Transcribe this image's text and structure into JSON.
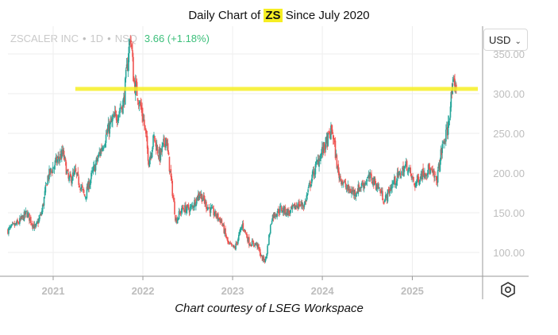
{
  "title": {
    "prefix": "Daily Chart of ",
    "ticker": "ZS",
    "suffix": " Since July 2020"
  },
  "legend": {
    "name": "ZSCALER INC",
    "interval": "1D",
    "exchange": "NSQ",
    "change": "3.66 (+1.18%)"
  },
  "currency": {
    "value": "USD"
  },
  "caption": "Chart courtesy of LSEG Workspace",
  "colors": {
    "up": "#26a69a",
    "down": "#ef5350",
    "resistance": "#f6ee23",
    "change": "#3bbf7a"
  },
  "icons": {
    "currency_dropdown": "chevron-down-icon",
    "settings": "hexagon-settings-icon"
  },
  "chart_data": {
    "type": "candlestick",
    "x_ticks": [
      "2021",
      "2022",
      "2023",
      "2024",
      "2025"
    ],
    "y_ticks": [
      "350.00",
      "300.00",
      "250.00",
      "200.00",
      "150.00",
      "100.00"
    ],
    "ylim": [
      70,
      385
    ],
    "xlim": [
      "2020-07-01",
      "2025-10-01"
    ],
    "grid": true,
    "resistance_level": 306,
    "resistance_start": "2021-04-01",
    "anchors": [
      [
        "2020-07-01",
        128
      ],
      [
        "2020-08-15",
        138
      ],
      [
        "2020-09-15",
        150
      ],
      [
        "2020-10-20",
        130
      ],
      [
        "2020-11-15",
        150
      ],
      [
        "2020-12-10",
        195
      ],
      [
        "2021-01-15",
        215
      ],
      [
        "2021-02-10",
        225
      ],
      [
        "2021-03-05",
        190
      ],
      [
        "2021-04-01",
        200
      ],
      [
        "2021-05-10",
        170
      ],
      [
        "2021-06-10",
        200
      ],
      [
        "2021-07-15",
        230
      ],
      [
        "2021-08-20",
        260
      ],
      [
        "2021-09-20",
        275
      ],
      [
        "2021-10-15",
        290
      ],
      [
        "2021-11-01",
        345
      ],
      [
        "2021-11-12",
        375
      ],
      [
        "2021-11-25",
        315
      ],
      [
        "2021-12-10",
        300
      ],
      [
        "2022-01-05",
        265
      ],
      [
        "2022-01-25",
        215
      ],
      [
        "2022-02-15",
        245
      ],
      [
        "2022-03-10",
        220
      ],
      [
        "2022-04-05",
        245
      ],
      [
        "2022-05-15",
        140
      ],
      [
        "2022-06-10",
        155
      ],
      [
        "2022-07-15",
        155
      ],
      [
        "2022-08-20",
        175
      ],
      [
        "2022-09-15",
        160
      ],
      [
        "2022-10-15",
        150
      ],
      [
        "2022-11-15",
        140
      ],
      [
        "2022-12-15",
        110
      ],
      [
        "2023-01-10",
        105
      ],
      [
        "2023-02-10",
        135
      ],
      [
        "2023-03-10",
        112
      ],
      [
        "2023-04-10",
        110
      ],
      [
        "2023-05-01",
        92
      ],
      [
        "2023-05-15",
        90
      ],
      [
        "2023-06-10",
        145
      ],
      [
        "2023-07-15",
        155
      ],
      [
        "2023-08-20",
        150
      ],
      [
        "2023-09-20",
        160
      ],
      [
        "2023-10-20",
        160
      ],
      [
        "2023-11-20",
        195
      ],
      [
        "2023-12-20",
        220
      ],
      [
        "2024-01-20",
        240
      ],
      [
        "2024-02-10",
        255
      ],
      [
        "2024-03-05",
        200
      ],
      [
        "2024-04-10",
        180
      ],
      [
        "2024-05-10",
        175
      ],
      [
        "2024-06-10",
        185
      ],
      [
        "2024-07-15",
        195
      ],
      [
        "2024-08-20",
        180
      ],
      [
        "2024-09-10",
        165
      ],
      [
        "2024-10-10",
        185
      ],
      [
        "2024-11-15",
        200
      ],
      [
        "2024-12-10",
        210
      ],
      [
        "2025-01-10",
        185
      ],
      [
        "2025-02-10",
        200
      ],
      [
        "2025-03-10",
        205
      ],
      [
        "2025-04-10",
        190
      ],
      [
        "2025-05-01",
        230
      ],
      [
        "2025-05-25",
        255
      ],
      [
        "2025-06-10",
        300
      ],
      [
        "2025-06-20",
        310
      ],
      [
        "2025-07-01",
        312
      ]
    ]
  }
}
